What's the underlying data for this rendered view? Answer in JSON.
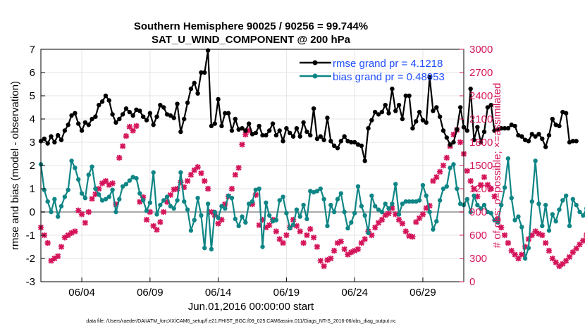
{
  "chart_data": {
    "type": "line",
    "title": "Southern Hemisphere 90025 / 90256 = 99.744%",
    "subtitle": "SAT_U_WIND_COMPONENT @ 200 hPa",
    "xlabel": "Jun.01,2016 00:00:00 start",
    "ylabel": "rmse and bias (model - observation)",
    "y2label": "# of obs: o=possible; ×=assimilated",
    "xlim": [
      1,
      32
    ],
    "ylim": [
      -3,
      7
    ],
    "y2lim": [
      0,
      3000
    ],
    "xticks": [
      4,
      9,
      14,
      19,
      24,
      29
    ],
    "xticklabels": [
      "06/04",
      "06/09",
      "06/14",
      "06/19",
      "06/24",
      "06/29"
    ],
    "yticks": [
      -3,
      -2,
      -1,
      0,
      1,
      2,
      3,
      4,
      5,
      6,
      7
    ],
    "y2ticks": [
      0,
      300,
      600,
      900,
      1200,
      1500,
      1800,
      2100,
      2400,
      2700,
      3000
    ],
    "grid": true,
    "legend_position": "top-right",
    "footnote": "data file: /Users/raeder/DAI/ATM_forcXX/CAM6_setup/f.e21.FHIST_BGC.f09_025.CAM6assim.011/Diags_NTrS_2016-06/obs_diag_output.nc",
    "colors": {
      "rmse": "#000000",
      "bias": "#0f8585",
      "obs": "#d4145a",
      "zero": "#aaaaaa",
      "legend_text": "#1f4fff"
    },
    "series": [
      {
        "name": "rmse grand pr = 4.1218",
        "axis": "left",
        "color": "#000000",
        "marker": "filled-circle",
        "x_start": 1.0,
        "x_step": 0.25,
        "values": [
          3.05,
          3.15,
          2.95,
          3.25,
          3.0,
          3.3,
          3.1,
          3.5,
          3.75,
          4.15,
          4.25,
          3.8,
          3.5,
          3.85,
          3.75,
          4.0,
          4.1,
          4.6,
          4.75,
          5.0,
          4.8,
          4.2,
          3.85,
          4.0,
          4.2,
          4.45,
          4.3,
          4.15,
          4.4,
          4.35,
          4.1,
          3.95,
          4.25,
          3.75,
          4.1,
          4.6,
          4.5,
          4.2,
          4.15,
          4.05,
          4.65,
          3.45,
          4.0,
          4.7,
          5.3,
          5.55,
          5.1,
          6.0,
          6.0,
          6.95,
          3.7,
          3.8,
          4.85,
          3.7,
          4.25,
          4.25,
          3.5,
          4.0,
          3.55,
          3.6,
          3.5,
          3.8,
          3.35,
          3.4,
          3.7,
          3.3,
          3.3,
          3.5,
          3.8,
          3.3,
          3.5,
          3.05,
          3.6,
          3.4,
          3.25,
          3.6,
          3.25,
          3.85,
          3.45,
          3.3,
          4.45,
          3.15,
          3.25,
          3.1,
          4.05,
          3.05,
          2.85,
          2.75,
          3.05,
          3.25,
          3.05,
          3.0,
          3.0,
          2.9,
          2.85,
          2.2,
          3.6,
          3.95,
          4.3,
          4.2,
          4.3,
          4.6,
          4.25,
          5.3,
          4.35,
          4.6,
          4.0,
          5.0,
          5.0,
          3.6,
          3.9,
          4.3,
          3.95,
          3.85,
          5.8,
          4.35,
          4.5,
          4.1,
          3.5,
          3.2,
          2.9,
          3.0,
          3.55,
          4.5,
          3.65,
          3.5,
          5.3,
          3.1,
          3.65,
          3.0,
          3.45,
          4.5,
          4.6,
          3.5,
          3.55,
          3.6,
          3.6,
          3.6,
          3.75,
          3.7,
          3.3,
          3.25,
          3.1,
          3.05,
          3.35,
          3.25,
          3.35,
          3.15,
          2.8,
          3.3,
          4.0,
          3.75,
          3.7,
          4.3,
          4.25,
          3.0,
          3.05,
          3.05
        ]
      },
      {
        "name": "bias grand pr = 0.48953",
        "axis": "left",
        "color": "#0f8585",
        "marker": "filled-circle",
        "x_start": 1.0,
        "x_step": 0.25,
        "values": [
          2.05,
          0.95,
          0.45,
          0.0,
          0.55,
          -0.2,
          0.25,
          0.65,
          0.95,
          2.2,
          1.9,
          1.4,
          0.8,
          0.6,
          1.6,
          1.95,
          1.0,
          0.75,
          0.5,
          0.55,
          0.65,
          0.95,
          0.0,
          0.55,
          1.1,
          1.2,
          1.35,
          1.5,
          1.45,
          0.8,
          0.5,
          0.05,
          0.4,
          1.7,
          -0.1,
          0.3,
          0.5,
          0.65,
          0.25,
          0.15,
          0.5,
          1.7,
          0.45,
          0.1,
          -0.8,
          -0.35,
          0.6,
          -0.15,
          -1.55,
          0.35,
          -1.6,
          0.0,
          -0.25,
          0.25,
          0.15,
          0.7,
          0.6,
          -0.3,
          -0.6,
          -0.2,
          -0.45,
          0.35,
          0.45,
          0.95,
          1.0,
          -1.5,
          0.4,
          -0.15,
          -0.4,
          -0.35,
          0.5,
          0.65,
          -0.05,
          -0.7,
          -0.55,
          0.1,
          -0.2,
          0.3,
          -0.3,
          0.9,
          0.85,
          0.9,
          1.0,
          0.55,
          -0.6,
          0.3,
          0.0,
          0.55,
          0.8,
          0.0,
          -0.7,
          -0.45,
          -0.05,
          1.1,
          0.25,
          -0.15,
          -0.9,
          0.7,
          0.25,
          0.1,
          0.0,
          0.35,
          0.15,
          0.35,
          1.2,
          -0.1,
          0.35,
          0.45,
          0.45,
          0.45,
          0.45,
          0.5,
          1.15,
          0.7,
          0.0,
          -0.75,
          -0.4,
          0.5,
          1.0,
          1.1,
          1.9,
          2.05,
          1.0,
          0.35,
          0.3,
          0.55,
          0.0,
          0.7,
          0.3,
          0.15,
          0.3,
          0.0,
          -0.05,
          -0.35,
          -0.45,
          0.3,
          1.05,
          2.3,
          0.6,
          -0.35,
          -0.2,
          -0.65,
          -2.0,
          -1.55,
          0.45,
          2.2,
          0.35,
          -0.6,
          0.3,
          -0.8,
          -0.1,
          -0.4,
          0.1,
          0.5,
          0.7,
          -0.6,
          0.55,
          0.3,
          0.0,
          -0.15,
          0.15,
          1.0,
          0.7,
          0.85
        ]
      },
      {
        "name": "obs assimilated",
        "axis": "right",
        "color": "#d4145a",
        "marker": "x",
        "x_start": 1.0,
        "x_step": 0.25,
        "values": [
          700,
          600,
          500,
          270,
          300,
          330,
          450,
          570,
          600,
          630,
          650,
          920,
          870,
          760,
          900,
          1070,
          1130,
          1200,
          1270,
          1300,
          1250,
          1270,
          1000,
          1600,
          1750,
          1880,
          2000,
          1950,
          2010,
          1030,
          1090,
          800,
          900,
          720,
          670,
          770,
          900,
          1030,
          1120,
          1190,
          1200,
          1280,
          1220,
          1300,
          1380,
          1440,
          1480,
          1400,
          1300,
          1200,
          900,
          860,
          750,
          800,
          1000,
          1100,
          1200,
          1380,
          1470,
          1770,
          1900,
          1950,
          1000,
          1120,
          730,
          800,
          700,
          730,
          800,
          650,
          550,
          500,
          600,
          700,
          800,
          720,
          650,
          500,
          600,
          680,
          570,
          450,
          270,
          200,
          280,
          300,
          400,
          500,
          520,
          420,
          350,
          380,
          400,
          420,
          500,
          550,
          650,
          600,
          700,
          760,
          800,
          860,
          880,
          950,
          870,
          800,
          750,
          650,
          590,
          580,
          770,
          820,
          870,
          950,
          980,
          1300,
          1350,
          1420,
          1500,
          1600,
          1750,
          1900,
          1960,
          1800,
          1650,
          1430,
          1300,
          1200,
          1100,
          1250,
          1350,
          1250,
          1200,
          1100,
          800,
          700,
          600,
          500,
          400,
          350,
          300,
          350,
          450,
          550,
          600,
          650,
          620,
          600,
          500,
          400,
          300,
          250,
          200,
          230,
          270,
          320,
          380,
          430,
          480,
          530,
          600,
          750,
          800,
          700,
          550,
          0
        ]
      }
    ]
  }
}
